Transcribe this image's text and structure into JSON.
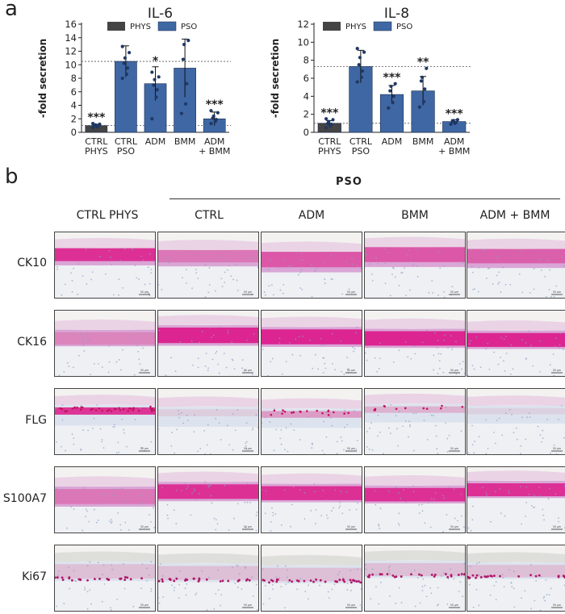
{
  "panel_a_label": "a",
  "panel_b_label": "b",
  "legend": {
    "phys": "PHYS",
    "pso": "PSO",
    "phys_color": "#444444",
    "pso_color": "#3f67a4"
  },
  "chart_data": [
    {
      "type": "bar",
      "title": "IL-6",
      "ylabel": "-fold secretion",
      "xlabel": "",
      "ylim": [
        0,
        16
      ],
      "yticks": [
        0,
        2,
        4,
        6,
        8,
        10,
        12,
        14,
        16
      ],
      "categories": [
        "CTRL PHYS",
        "CTRL PSO",
        "ADM",
        "BMM",
        "ADM + BMM"
      ],
      "values": [
        1.0,
        10.5,
        7.2,
        9.5,
        2.0
      ],
      "errors": [
        0.2,
        2.3,
        2.5,
        4.3,
        1.0
      ],
      "groups": [
        "PHYS",
        "PSO",
        "PSO",
        "PSO",
        "PSO"
      ],
      "significance": [
        "***",
        "",
        "*",
        "",
        "***"
      ],
      "ref_lines": [
        10.5,
        1.0
      ],
      "points": [
        [
          0.7,
          0.8,
          0.9,
          1.0,
          1.1,
          1.2,
          1.3
        ],
        [
          8.0,
          8.6,
          9.5,
          10.2,
          11.0,
          11.8,
          12.7
        ],
        [
          2.0,
          5.2,
          6.3,
          7.0,
          7.8,
          8.2,
          8.9
        ],
        [
          2.8,
          4.2,
          7.2,
          10.8,
          13.0,
          13.6
        ],
        [
          1.3,
          1.6,
          1.9,
          2.1,
          2.4,
          2.9,
          3.2
        ]
      ]
    },
    {
      "type": "bar",
      "title": "IL-8",
      "ylabel": "-fold secretion",
      "xlabel": "",
      "ylim": [
        0,
        12
      ],
      "yticks": [
        0,
        2,
        4,
        6,
        8,
        10,
        12
      ],
      "categories": [
        "CTRL PHYS",
        "CTRL PSO",
        "ADM",
        "BMM",
        "ADM + BMM"
      ],
      "values": [
        1.0,
        7.3,
        4.2,
        4.6,
        1.2
      ],
      "errors": [
        0.3,
        1.8,
        1.0,
        1.6,
        0.2
      ],
      "groups": [
        "PHYS",
        "PSO",
        "PSO",
        "PSO",
        "PSO"
      ],
      "significance": [
        "***",
        "",
        "***",
        "**",
        "***"
      ],
      "ref_lines": [
        7.3,
        1.0
      ],
      "points": [
        [
          0.5,
          0.7,
          0.9,
          1.0,
          1.2,
          1.4,
          1.5
        ],
        [
          5.6,
          6.1,
          6.8,
          7.5,
          8.3,
          8.9,
          9.3
        ],
        [
          2.7,
          3.3,
          4.0,
          4.6,
          5.1,
          5.4
        ],
        [
          2.8,
          3.4,
          4.8,
          5.7,
          6.1,
          7.1
        ],
        [
          0.9,
          1.0,
          1.1,
          1.2,
          1.3,
          1.4
        ]
      ]
    }
  ],
  "panel_b": {
    "group_label": "PSO",
    "columns": [
      "CTRL PHYS",
      "CTRL",
      "ADM",
      "BMM",
      "ADM + BMM"
    ],
    "rows": [
      "CK10",
      "CK16",
      "FLG",
      "S100A7",
      "Ki67"
    ],
    "scale_bar": "50 µm"
  }
}
